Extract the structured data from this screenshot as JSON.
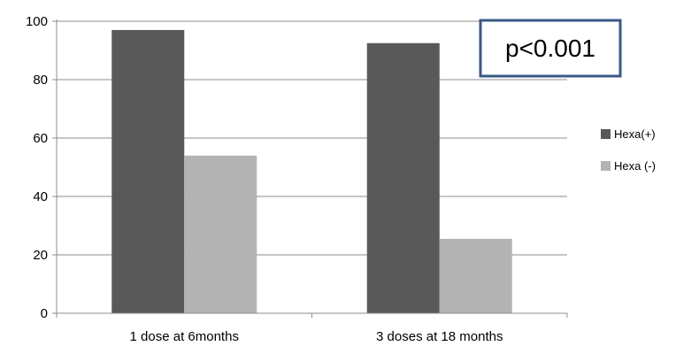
{
  "chart_data": {
    "type": "bar",
    "categories": [
      "1 dose at 6months",
      "3 doses at 18 months"
    ],
    "series": [
      {
        "name": "Hexa(+)",
        "values": [
          97,
          92.5
        ],
        "color": "#595959"
      },
      {
        "name": "Hexa (-)",
        "values": [
          54,
          25.5
        ],
        "color": "#b3b3b3"
      }
    ],
    "ylim": [
      0,
      100
    ],
    "yticks": [
      0,
      20,
      40,
      60,
      80,
      100
    ],
    "grid": true,
    "legend_position": "right",
    "annotation": {
      "text": "p<0.001",
      "border_color": "#3a5a86"
    }
  }
}
